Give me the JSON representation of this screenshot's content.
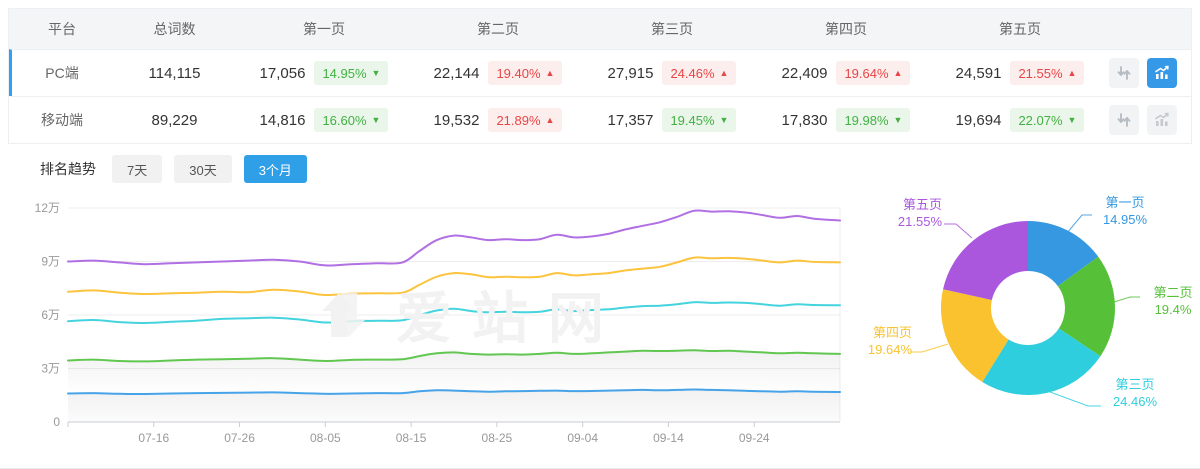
{
  "header_row": [
    "平台",
    "总词数",
    "第一页",
    "第二页",
    "第三页",
    "第四页",
    "第五页"
  ],
  "rows": [
    {
      "platform": "PC端",
      "total": "114,115",
      "selected": true,
      "chart_button_active": true,
      "cells": [
        {
          "count": "17,056",
          "pct": "14.95%",
          "dir": "down",
          "tone": "green"
        },
        {
          "count": "22,144",
          "pct": "19.40%",
          "dir": "up",
          "tone": "red"
        },
        {
          "count": "27,915",
          "pct": "24.46%",
          "dir": "up",
          "tone": "red"
        },
        {
          "count": "22,409",
          "pct": "19.64%",
          "dir": "up",
          "tone": "red"
        },
        {
          "count": "24,591",
          "pct": "21.55%",
          "dir": "up",
          "tone": "red"
        }
      ]
    },
    {
      "platform": "移动端",
      "total": "89,229",
      "selected": false,
      "chart_button_active": false,
      "cells": [
        {
          "count": "14,816",
          "pct": "16.60%",
          "dir": "down",
          "tone": "green"
        },
        {
          "count": "19,532",
          "pct": "21.89%",
          "dir": "up",
          "tone": "red"
        },
        {
          "count": "17,357",
          "pct": "19.45%",
          "dir": "down",
          "tone": "green"
        },
        {
          "count": "17,830",
          "pct": "19.98%",
          "dir": "down",
          "tone": "green"
        },
        {
          "count": "19,694",
          "pct": "22.07%",
          "dir": "down",
          "tone": "green"
        }
      ]
    }
  ],
  "trend": {
    "label": "排名趋势",
    "tabs": [
      {
        "label": "7天",
        "active": false
      },
      {
        "label": "30天",
        "active": false
      },
      {
        "label": "3个月",
        "active": true
      }
    ]
  },
  "watermark": "爱站网",
  "colors": {
    "selected_row_bar": "#2ea1f2",
    "active_tab": "#2f9fe8",
    "active_icon_button": "#3699e8",
    "badge_up": "#e84545",
    "badge_down": "#43b043"
  },
  "chart_data": [
    {
      "type": "line",
      "title": "排名趋势 - 3个月",
      "x_ticks": [
        "07-16",
        "07-26",
        "08-05",
        "08-15",
        "08-25",
        "09-04",
        "09-14",
        "09-24"
      ],
      "x_tick_days": [
        10,
        20,
        30,
        40,
        50,
        60,
        70,
        80
      ],
      "x_range_days": [
        0,
        90
      ],
      "y_ticks": [
        "12万",
        "9万",
        "6万",
        "3万",
        "0"
      ],
      "ylim": [
        0,
        120000
      ],
      "unit": "万",
      "grid": true,
      "legend": "none",
      "days": [
        0,
        3,
        6,
        9,
        12,
        15,
        18,
        21,
        24,
        27,
        30,
        33,
        36,
        39,
        41,
        43,
        45,
        47,
        49,
        51,
        53,
        55,
        57,
        59,
        61,
        63,
        65,
        67,
        69,
        71,
        73,
        75,
        77,
        79,
        81,
        83,
        85,
        87,
        90
      ],
      "series": [
        {
          "name": "series-purple",
          "color": "#b06fe3",
          "area": false,
          "values": [
            9.0,
            9.05,
            8.95,
            8.85,
            8.9,
            8.95,
            9.0,
            9.05,
            9.1,
            9.0,
            8.78,
            8.85,
            8.9,
            8.95,
            9.6,
            10.2,
            10.45,
            10.35,
            10.2,
            10.25,
            10.2,
            10.25,
            10.5,
            10.35,
            10.4,
            10.55,
            10.8,
            11.0,
            11.2,
            11.5,
            11.85,
            11.8,
            11.82,
            11.75,
            11.6,
            11.45,
            11.55,
            11.4,
            11.3
          ]
        },
        {
          "name": "series-yellow",
          "color": "#fcc43e",
          "area": false,
          "values": [
            7.3,
            7.38,
            7.25,
            7.18,
            7.22,
            7.25,
            7.3,
            7.28,
            7.42,
            7.32,
            7.12,
            7.2,
            7.22,
            7.25,
            7.7,
            8.15,
            8.35,
            8.28,
            8.12,
            8.15,
            8.12,
            8.15,
            8.35,
            8.22,
            8.28,
            8.35,
            8.5,
            8.6,
            8.7,
            8.95,
            9.22,
            9.18,
            9.2,
            9.15,
            9.05,
            8.95,
            9.05,
            8.98,
            8.95
          ]
        },
        {
          "name": "series-cyan",
          "color": "#45d3de",
          "area": false,
          "values": [
            5.65,
            5.72,
            5.6,
            5.55,
            5.62,
            5.68,
            5.78,
            5.82,
            5.85,
            5.75,
            5.58,
            5.65,
            5.68,
            5.7,
            6.0,
            6.25,
            6.35,
            6.22,
            6.15,
            6.18,
            6.15,
            6.18,
            6.32,
            6.22,
            6.28,
            6.32,
            6.42,
            6.5,
            6.52,
            6.6,
            6.72,
            6.68,
            6.7,
            6.68,
            6.6,
            6.52,
            6.6,
            6.56,
            6.55
          ]
        },
        {
          "name": "series-green",
          "color": "#61c751",
          "area": true,
          "values": [
            3.45,
            3.5,
            3.42,
            3.4,
            3.45,
            3.5,
            3.52,
            3.55,
            3.58,
            3.5,
            3.42,
            3.48,
            3.5,
            3.52,
            3.7,
            3.85,
            3.9,
            3.82,
            3.78,
            3.8,
            3.78,
            3.82,
            3.88,
            3.82,
            3.85,
            3.9,
            3.95,
            4.0,
            3.98,
            4.0,
            4.02,
            3.98,
            4.0,
            3.95,
            3.9,
            3.85,
            3.88,
            3.85,
            3.82
          ]
        },
        {
          "name": "series-blue",
          "color": "#47a3e8",
          "area": true,
          "values": [
            1.6,
            1.62,
            1.58,
            1.57,
            1.6,
            1.62,
            1.63,
            1.65,
            1.66,
            1.62,
            1.58,
            1.6,
            1.62,
            1.62,
            1.72,
            1.78,
            1.76,
            1.72,
            1.7,
            1.72,
            1.73,
            1.75,
            1.76,
            1.73,
            1.74,
            1.76,
            1.78,
            1.8,
            1.78,
            1.8,
            1.82,
            1.8,
            1.78,
            1.75,
            1.72,
            1.7,
            1.72,
            1.7,
            1.68
          ]
        }
      ]
    },
    {
      "type": "pie",
      "donut": true,
      "slices": [
        {
          "label": "第一页",
          "pct": "14.95%",
          "value": 14.95,
          "color": "#3598e0"
        },
        {
          "label": "第二页",
          "pct": "19.4%",
          "value": 19.4,
          "color": "#56c138"
        },
        {
          "label": "第三页",
          "pct": "24.46%",
          "value": 24.46,
          "color": "#2fcede"
        },
        {
          "label": "第四页",
          "pct": "19.64%",
          "value": 19.64,
          "color": "#f9c22e"
        },
        {
          "label": "第五页",
          "pct": "21.55%",
          "value": 21.55,
          "color": "#aa57de"
        }
      ]
    }
  ]
}
